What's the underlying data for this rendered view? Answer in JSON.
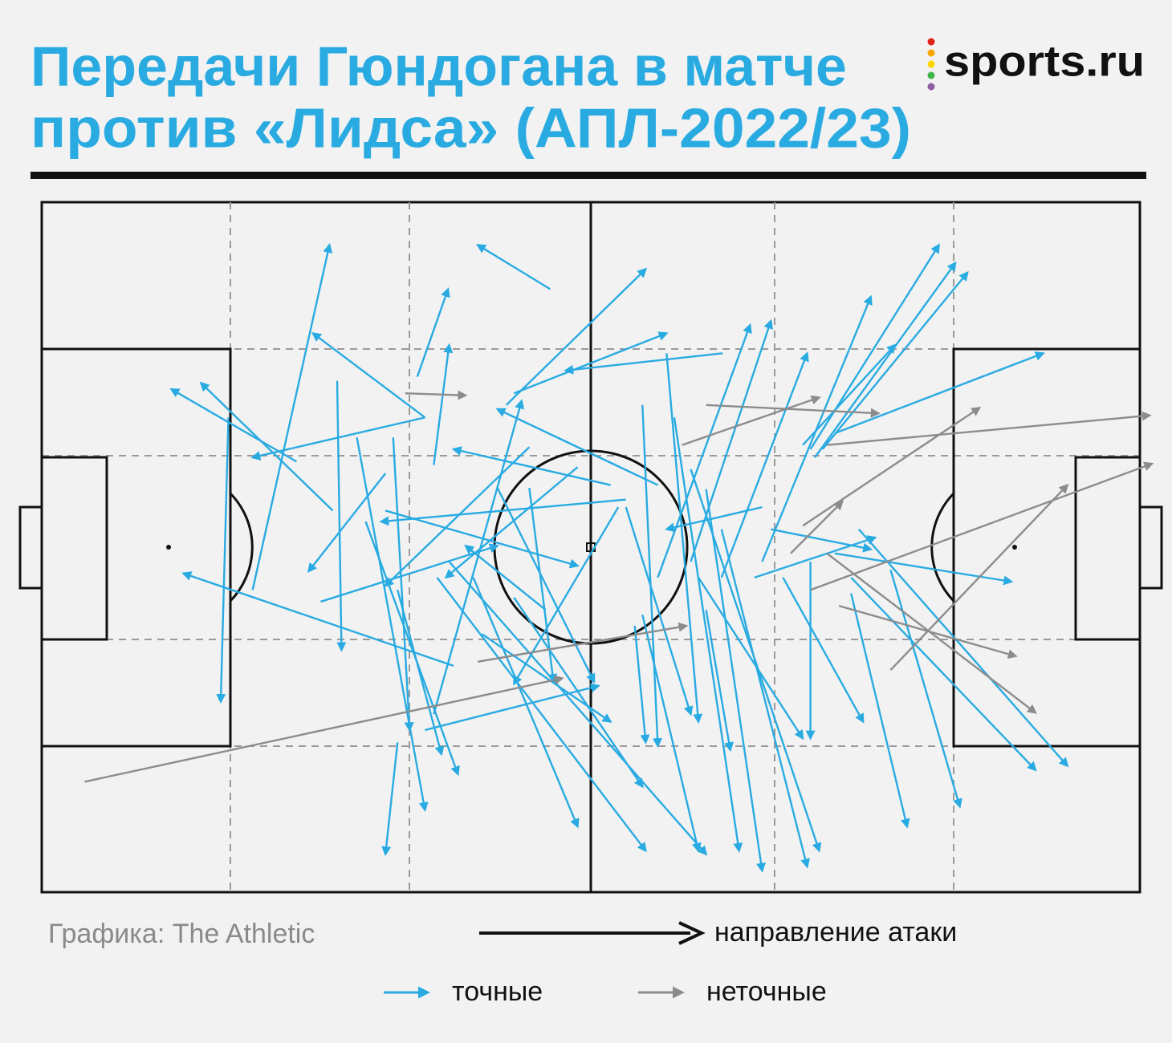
{
  "chart_data": {
    "type": "pass-map",
    "title": [
      "Передачи Гюндогана в матче",
      "против «Лидса» (АПЛ-2022/23)"
    ],
    "logo": "sports.ru",
    "source": "Графика: The Athletic",
    "direction_label": "направление атаки",
    "xlim": [
      0,
      100
    ],
    "ylim": [
      0,
      100
    ],
    "series": [
      {
        "name": "точные",
        "color": "#29abe2",
        "passes": [
          [
            19.2,
            43.8,
            26.2,
            93.8
          ],
          [
            26.5,
            55.3,
            14.5,
            73.8
          ],
          [
            23.2,
            62.4,
            11.8,
            72.9
          ],
          [
            17.0,
            68.8,
            16.3,
            27.6
          ],
          [
            34.9,
            68.8,
            19.2,
            63.0
          ],
          [
            34.9,
            68.8,
            24.7,
            81.0
          ],
          [
            34.2,
            74.7,
            37.0,
            87.4
          ],
          [
            35.7,
            61.9,
            37.1,
            79.3
          ],
          [
            26.9,
            74.1,
            27.3,
            35.1
          ],
          [
            37.5,
            32.8,
            12.9,
            46.2
          ],
          [
            31.3,
            60.7,
            24.3,
            46.5
          ],
          [
            46.3,
            87.4,
            39.7,
            93.8
          ],
          [
            42.3,
            70.6,
            55.0,
            90.3
          ],
          [
            43.0,
            72.3,
            56.9,
            81.0
          ],
          [
            62.0,
            78.1,
            47.7,
            75.6
          ],
          [
            44.4,
            64.5,
            31.3,
            44.4
          ],
          [
            25.4,
            42.1,
            41.5,
            50.2
          ],
          [
            31.3,
            55.3,
            48.8,
            47.3
          ],
          [
            28.7,
            65.9,
            34.9,
            11.9
          ],
          [
            32.4,
            21.7,
            31.3,
            5.5
          ],
          [
            32.0,
            65.9,
            33.5,
            23.5
          ],
          [
            39.3,
            45.6,
            48.8,
            9.5
          ],
          [
            36.0,
            45.6,
            55.0,
            6.0
          ],
          [
            37.1,
            47.9,
            60.5,
            5.5
          ],
          [
            43.0,
            42.7,
            54.7,
            15.3
          ],
          [
            40.1,
            37.4,
            51.8,
            24.7
          ],
          [
            34.9,
            23.5,
            50.7,
            29.9
          ],
          [
            35.7,
            25.8,
            43.7,
            71.2
          ],
          [
            29.5,
            53.7,
            37.9,
            17.1
          ],
          [
            32.4,
            43.8,
            36.4,
            20.0
          ],
          [
            48.8,
            61.6,
            36.8,
            45.6
          ],
          [
            53.2,
            56.9,
            30.9,
            53.7
          ],
          [
            44.4,
            58.6,
            46.6,
            30.5
          ],
          [
            52.5,
            55.8,
            43.0,
            30.2
          ],
          [
            56.1,
            59.0,
            41.5,
            70.0
          ],
          [
            51.8,
            59.0,
            37.5,
            64.2
          ],
          [
            56.9,
            78.1,
            59.8,
            24.7
          ],
          [
            57.6,
            68.8,
            63.5,
            6.0
          ],
          [
            54.7,
            70.6,
            56.1,
            21.2
          ],
          [
            59.1,
            61.3,
            70.8,
            6.0
          ],
          [
            60.5,
            58.4,
            65.6,
            3.1
          ],
          [
            61.9,
            52.6,
            69.7,
            3.7
          ],
          [
            56.1,
            45.6,
            64.5,
            82.2
          ],
          [
            59.1,
            47.9,
            66.4,
            82.8
          ],
          [
            61.9,
            45.6,
            69.7,
            78.1
          ],
          [
            65.6,
            47.9,
            75.5,
            86.3
          ],
          [
            70.0,
            64.2,
            81.7,
            93.8
          ],
          [
            70.4,
            63.0,
            83.2,
            91.2
          ],
          [
            71.1,
            64.2,
            84.3,
            89.8
          ],
          [
            72.2,
            66.5,
            91.2,
            78.1
          ],
          [
            69.3,
            64.8,
            77.7,
            79.3
          ],
          [
            64.9,
            45.6,
            75.9,
            51.4
          ],
          [
            66.4,
            52.6,
            75.5,
            49.7
          ],
          [
            72.2,
            49.1,
            88.3,
            45.0
          ],
          [
            74.4,
            52.6,
            93.4,
            18.3
          ],
          [
            73.7,
            45.6,
            90.5,
            17.7
          ],
          [
            77.3,
            46.7,
            83.6,
            12.4
          ],
          [
            73.7,
            43.3,
            78.8,
            9.5
          ],
          [
            70.0,
            47.9,
            70.0,
            22.3
          ],
          [
            67.5,
            45.6,
            74.8,
            24.7
          ],
          [
            59.8,
            45.6,
            69.3,
            22.3
          ],
          [
            60.5,
            40.9,
            62.7,
            20.6
          ],
          [
            54.7,
            40.2,
            59.8,
            6.0
          ],
          [
            54.0,
            38.6,
            55.0,
            21.7
          ],
          [
            53.2,
            55.8,
            59.1,
            25.8
          ],
          [
            41.5,
            58.6,
            50.3,
            30.5
          ],
          [
            65.6,
            55.8,
            56.9,
            52.6
          ],
          [
            45.9,
            40.9,
            38.6,
            50.2
          ]
        ]
      },
      {
        "name": "неточные",
        "color": "#8c8c8c",
        "passes": [
          [
            3.9,
            16.0,
            47.4,
            31.0
          ],
          [
            39.7,
            33.4,
            58.7,
            38.6
          ],
          [
            33.1,
            72.3,
            38.6,
            72.0
          ],
          [
            58.3,
            64.8,
            70.8,
            71.7
          ],
          [
            60.5,
            70.6,
            76.2,
            69.4
          ],
          [
            71.5,
            64.8,
            100.9,
            69.1
          ],
          [
            69.3,
            53.1,
            85.4,
            70.2
          ],
          [
            70.0,
            43.8,
            101.1,
            62.1
          ],
          [
            77.3,
            32.2,
            93.4,
            59.0
          ],
          [
            71.5,
            49.1,
            90.5,
            26.0
          ],
          [
            72.6,
            41.5,
            88.7,
            34.2
          ],
          [
            68.2,
            49.1,
            72.9,
            56.6
          ]
        ]
      }
    ]
  }
}
